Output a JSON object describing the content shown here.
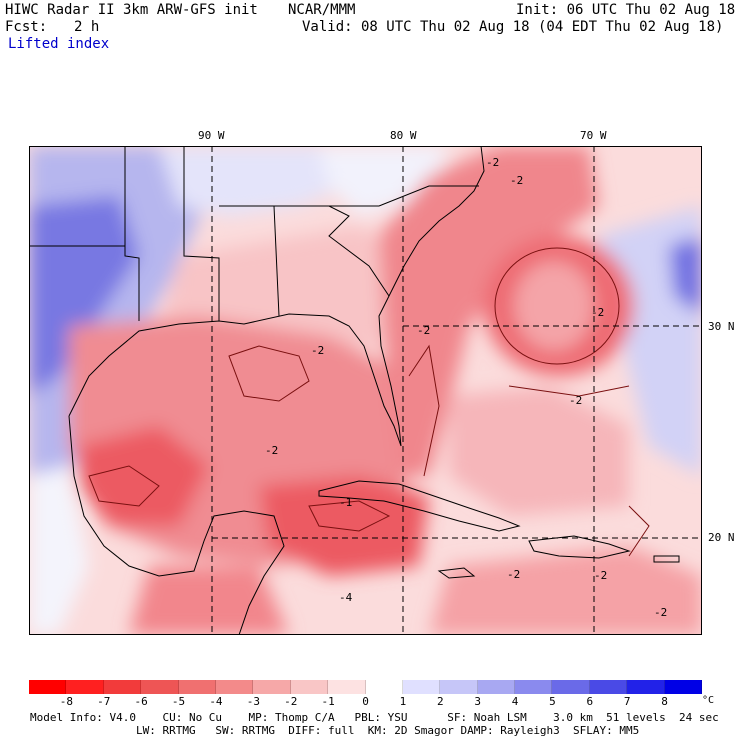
{
  "header": {
    "title": "HIWC Radar II 3km ARW-GFS init",
    "org": "NCAR/MMM",
    "init": "Init: 06 UTC Thu 02 Aug 18",
    "fcst_label": "Fcst:",
    "fcst_value": "2 h",
    "valid": "Valid: 08 UTC Thu 02 Aug 18 (04 EDT Thu 02 Aug 18)",
    "field": "Lifted index"
  },
  "map": {
    "lon_labels": [
      "90 W",
      "80 W",
      "70 W"
    ],
    "lat_labels": [
      "30 N",
      "20 N"
    ],
    "contour_labels": [
      "-2",
      "-2",
      "-2",
      "-2",
      "-2",
      "-1",
      "-2",
      "-2",
      "-2",
      "-2",
      "-2",
      "-4"
    ],
    "colors": {
      "strong_neg": "#e8393f",
      "mid_neg": "#f0727a",
      "weak_neg": "#f8b8bc",
      "faint_neg": "#fbdcdc",
      "neutral": "#ffffff",
      "weak_pos": "#dcdcf8",
      "mid_pos": "#9c9cf0",
      "strong_pos": "#5a5ae6"
    }
  },
  "legend": {
    "labels": [
      "-8",
      "-7",
      "-6",
      "-5",
      "-4",
      "-3",
      "-2",
      "-1",
      "0",
      "1",
      "2",
      "3",
      "4",
      "5",
      "6",
      "7",
      "8"
    ],
    "unit": "°C",
    "colors": [
      "#ff0000",
      "#ff2020",
      "#f23b3b",
      "#ee5555",
      "#f07070",
      "#f38a8a",
      "#f6a8a8",
      "#f9c6c6",
      "#fde2e2",
      "#ffffff",
      "#e0e0ff",
      "#c6c6f8",
      "#a8a8f2",
      "#8a8aee",
      "#6a6ae8",
      "#4a4ae6",
      "#2222e8",
      "#0000e6"
    ]
  },
  "footer": {
    "line1": "Model Info: V4.0    CU: No Cu    MP: Thomp C/A   PBL: YSU      SF: Noah LSM    3.0 km  51 levels  24 sec",
    "line2": "                LW: RRTMG   SW: RRTMG  DIFF: full  KM: 2D Smagor DAMP: Rayleigh3  SFLAY: MM5"
  }
}
